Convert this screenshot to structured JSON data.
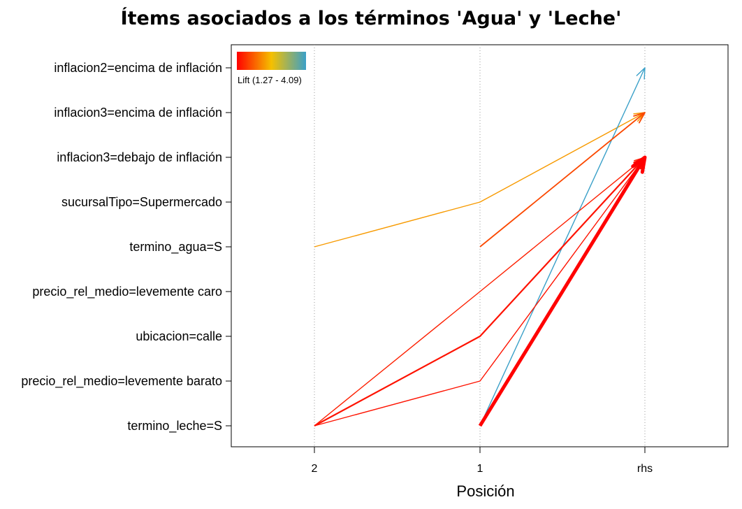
{
  "chart_data": {
    "type": "parallel-coordinates",
    "title": "Ítems asociados a los términos 'Agua' y 'Leche'",
    "xlabel": "Posición",
    "x_ticks": [
      "2",
      "1",
      "rhs"
    ],
    "y_items": [
      "inflacion2=encima de inflación",
      "inflacion3=encima de inflación",
      "inflacion3=debajo de inflación",
      "sucursalTipo=Supermercado",
      "termino_agua=S",
      "precio_rel_medio=levemente caro",
      "ubicacion=calle",
      "precio_rel_medio=levemente barato",
      "termino_leche=S"
    ],
    "legend": {
      "label": "Lift (1.27 - 4.09)",
      "min": 1.27,
      "max": 4.09,
      "colors": [
        "#ff0000",
        "#f5c000",
        "#3aa0c8"
      ],
      "placement": "top-left"
    },
    "grid": "dotted vertical at each position",
    "rules": [
      {
        "path": [
          "termino_agua=S",
          "sucursalTipo=Supermercado",
          "inflacion3=encima de inflación"
        ],
        "lift": 2.4,
        "support": 0.1
      },
      {
        "path": [
          "termino_leche=S",
          "inflacion2=encima de inflación"
        ],
        "lift": 4.09,
        "support": 0.1
      },
      {
        "path": [
          "termino_agua=S",
          "inflacion3=encima de inflación"
        ],
        "lift": 1.8,
        "support": 0.2
      },
      {
        "path": [
          "termino_leche=S",
          "precio_rel_medio=levemente caro",
          "inflacion3=debajo de inflación"
        ],
        "lift": 1.5,
        "support": 0.1
      },
      {
        "path": [
          "termino_leche=S",
          "ubicacion=calle",
          "inflacion3=debajo de inflación"
        ],
        "lift": 1.4,
        "support": 0.3
      },
      {
        "path": [
          "termino_leche=S",
          "precio_rel_medio=levemente barato",
          "inflacion3=debajo de inflación"
        ],
        "lift": 1.4,
        "support": 0.1
      },
      {
        "path": [
          "termino_leche=S",
          "inflacion3=debajo de inflación"
        ],
        "lift": 1.27,
        "support": 1.0
      }
    ]
  }
}
